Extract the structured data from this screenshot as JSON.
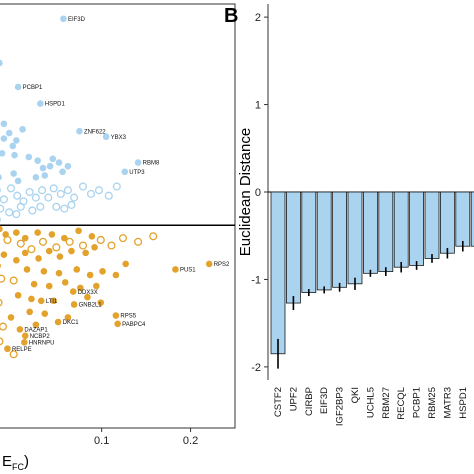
{
  "chart_data": [
    {
      "type": "scatter",
      "panel_label": "",
      "xlabel": "E_FC)",
      "xlabel_main": "E",
      "xlabel_sub": "FC",
      "xlabel_suffix": ")",
      "ylabel": "",
      "xlim": [
        -0.02,
        0.25
      ],
      "ylim": [
        -0.5,
        1.8
      ],
      "x_ticks": [
        0.1,
        0.2
      ],
      "x_tick_labels": [
        "0.1",
        "0.2"
      ],
      "hline": 0.6,
      "grid": false,
      "colors": {
        "blue": "#a9d3ef",
        "orange": "#e3a22c"
      },
      "labeled_points": [
        {
          "label": "EIF3D",
          "x": 0.057,
          "y": 1.72,
          "group": "blue"
        },
        {
          "label": "PCBP1",
          "x": 0.006,
          "y": 1.35,
          "group": "blue"
        },
        {
          "label": "HSPD1",
          "x": 0.031,
          "y": 1.26,
          "group": "blue"
        },
        {
          "label": "ZNF622",
          "x": 0.075,
          "y": 1.11,
          "group": "blue"
        },
        {
          "label": "YBX3",
          "x": 0.105,
          "y": 1.08,
          "group": "blue"
        },
        {
          "label": "RBM8",
          "x": 0.141,
          "y": 0.94,
          "group": "blue"
        },
        {
          "label": "UTP3",
          "x": 0.126,
          "y": 0.89,
          "group": "blue"
        },
        {
          "label": "RPS2",
          "x": 0.221,
          "y": 0.39,
          "group": "orange"
        },
        {
          "label": "PUS1",
          "x": 0.183,
          "y": 0.36,
          "group": "orange"
        },
        {
          "label": "DDX3X",
          "x": 0.068,
          "y": 0.24,
          "group": "orange"
        },
        {
          "label": "LTI1",
          "x": 0.032,
          "y": 0.19,
          "group": "orange"
        },
        {
          "label": "GNB2L1",
          "x": 0.069,
          "y": 0.17,
          "group": "orange"
        },
        {
          "label": "RPS5",
          "x": 0.116,
          "y": 0.11,
          "group": "orange"
        },
        {
          "label": "PABPC4",
          "x": 0.118,
          "y": 0.065,
          "group": "orange"
        },
        {
          "label": "DKC1",
          "x": 0.051,
          "y": 0.075,
          "group": "orange"
        },
        {
          "label": "DAZAP1",
          "x": 0.008,
          "y": 0.035,
          "group": "orange"
        },
        {
          "label": "NCBP2",
          "x": 0.014,
          "y": 0.0,
          "group": "orange"
        },
        {
          "label": "HNRNPU",
          "x": 0.013,
          "y": -0.035,
          "group": "orange"
        },
        {
          "label": "RELPE",
          "x": -0.006,
          "y": -0.07,
          "group": "orange"
        }
      ],
      "filled_points": [
        {
          "x": -0.015,
          "y": 1.48,
          "group": "blue"
        },
        {
          "x": -0.01,
          "y": 1.15,
          "group": "blue"
        },
        {
          "x": -0.01,
          "y": 1.07,
          "group": "blue"
        },
        {
          "x": -0.004,
          "y": 1.1,
          "group": "blue"
        },
        {
          "x": 0.0,
          "y": 1.03,
          "group": "blue"
        },
        {
          "x": 0.004,
          "y": 1.06,
          "group": "blue"
        },
        {
          "x": 0.011,
          "y": 1.12,
          "group": "blue"
        },
        {
          "x": 0.002,
          "y": 0.98,
          "group": "blue"
        },
        {
          "x": -0.012,
          "y": 0.99,
          "group": "blue"
        },
        {
          "x": -0.018,
          "y": 1.04,
          "group": "blue"
        },
        {
          "x": 0.018,
          "y": 0.97,
          "group": "blue"
        },
        {
          "x": 0.028,
          "y": 0.95,
          "group": "blue"
        },
        {
          "x": 0.034,
          "y": 0.91,
          "group": "blue"
        },
        {
          "x": 0.042,
          "y": 0.92,
          "group": "blue"
        },
        {
          "x": 0.045,
          "y": 0.96,
          "group": "blue"
        },
        {
          "x": 0.052,
          "y": 0.94,
          "group": "blue"
        },
        {
          "x": 0.056,
          "y": 0.89,
          "group": "blue"
        },
        {
          "x": 0.062,
          "y": 0.92,
          "group": "blue"
        },
        {
          "x": 0.036,
          "y": 0.87,
          "group": "blue"
        },
        {
          "x": 0.026,
          "y": 0.86,
          "group": "blue"
        },
        {
          "x": 0.006,
          "y": 0.84,
          "group": "blue"
        },
        {
          "x": 0.001,
          "y": 0.88,
          "group": "blue"
        },
        {
          "x": -0.016,
          "y": 0.86,
          "group": "blue"
        },
        {
          "x": -0.015,
          "y": 0.58,
          "group": "orange"
        },
        {
          "x": -0.008,
          "y": 0.55,
          "group": "orange"
        },
        {
          "x": 0.004,
          "y": 0.56,
          "group": "orange"
        },
        {
          "x": 0.014,
          "y": 0.53,
          "group": "orange"
        },
        {
          "x": 0.028,
          "y": 0.56,
          "group": "orange"
        },
        {
          "x": 0.044,
          "y": 0.55,
          "group": "orange"
        },
        {
          "x": 0.058,
          "y": 0.53,
          "group": "orange"
        },
        {
          "x": 0.074,
          "y": 0.57,
          "group": "orange"
        },
        {
          "x": 0.089,
          "y": 0.54,
          "group": "orange"
        },
        {
          "x": 0.092,
          "y": 0.48,
          "group": "orange"
        },
        {
          "x": 0.082,
          "y": 0.45,
          "group": "orange"
        },
        {
          "x": 0.066,
          "y": 0.46,
          "group": "orange"
        },
        {
          "x": 0.053,
          "y": 0.43,
          "group": "orange"
        },
        {
          "x": 0.041,
          "y": 0.46,
          "group": "orange"
        },
        {
          "x": 0.029,
          "y": 0.42,
          "group": "orange"
        },
        {
          "x": 0.014,
          "y": 0.45,
          "group": "orange"
        },
        {
          "x": 0.004,
          "y": 0.41,
          "group": "orange"
        },
        {
          "x": -0.01,
          "y": 0.44,
          "group": "orange"
        },
        {
          "x": -0.017,
          "y": 0.38,
          "group": "orange"
        },
        {
          "x": 0.016,
          "y": 0.36,
          "group": "orange"
        },
        {
          "x": 0.035,
          "y": 0.35,
          "group": "orange"
        },
        {
          "x": 0.052,
          "y": 0.34,
          "group": "orange"
        },
        {
          "x": 0.072,
          "y": 0.36,
          "group": "orange"
        },
        {
          "x": 0.087,
          "y": 0.33,
          "group": "orange"
        },
        {
          "x": 0.101,
          "y": 0.35,
          "group": "orange"
        },
        {
          "x": 0.116,
          "y": 0.33,
          "group": "orange"
        },
        {
          "x": 0.127,
          "y": 0.39,
          "group": "orange"
        },
        {
          "x": 0.024,
          "y": 0.28,
          "group": "orange"
        },
        {
          "x": 0.041,
          "y": 0.27,
          "group": "orange"
        },
        {
          "x": 0.059,
          "y": 0.29,
          "group": "orange"
        },
        {
          "x": 0.076,
          "y": 0.26,
          "group": "orange"
        },
        {
          "x": 0.094,
          "y": 0.27,
          "group": "orange"
        },
        {
          "x": 0.006,
          "y": 0.22,
          "group": "orange"
        },
        {
          "x": 0.021,
          "y": 0.2,
          "group": "orange"
        },
        {
          "x": 0.046,
          "y": 0.19,
          "group": "orange"
        },
        {
          "x": 0.084,
          "y": 0.21,
          "group": "orange"
        },
        {
          "x": 0.099,
          "y": 0.18,
          "group": "orange"
        },
        {
          "x": 0.019,
          "y": 0.13,
          "group": "orange"
        },
        {
          "x": 0.036,
          "y": 0.12,
          "group": "orange"
        },
        {
          "x": 0.062,
          "y": 0.1,
          "group": "orange"
        },
        {
          "x": 0.026,
          "y": 0.06,
          "group": "orange"
        },
        {
          "x": -0.002,
          "y": 0.1,
          "group": "orange"
        }
      ],
      "open_points": [
        {
          "x": -0.018,
          "y": 0.79,
          "group": "blue"
        },
        {
          "x": -0.01,
          "y": 0.74,
          "group": "blue"
        },
        {
          "x": -0.002,
          "y": 0.8,
          "group": "blue"
        },
        {
          "x": 0.005,
          "y": 0.76,
          "group": "blue"
        },
        {
          "x": 0.012,
          "y": 0.73,
          "group": "blue"
        },
        {
          "x": 0.019,
          "y": 0.78,
          "group": "blue"
        },
        {
          "x": 0.026,
          "y": 0.75,
          "group": "blue"
        },
        {
          "x": 0.033,
          "y": 0.79,
          "group": "blue"
        },
        {
          "x": 0.04,
          "y": 0.75,
          "group": "blue"
        },
        {
          "x": 0.046,
          "y": 0.8,
          "group": "blue"
        },
        {
          "x": 0.054,
          "y": 0.77,
          "group": "blue"
        },
        {
          "x": 0.062,
          "y": 0.79,
          "group": "blue"
        },
        {
          "x": 0.069,
          "y": 0.75,
          "group": "blue"
        },
        {
          "x": 0.079,
          "y": 0.81,
          "group": "blue"
        },
        {
          "x": 0.088,
          "y": 0.77,
          "group": "blue"
        },
        {
          "x": 0.097,
          "y": 0.79,
          "group": "blue"
        },
        {
          "x": 0.108,
          "y": 0.76,
          "group": "blue"
        },
        {
          "x": 0.117,
          "y": 0.81,
          "group": "blue"
        },
        {
          "x": -0.014,
          "y": 0.69,
          "group": "blue"
        },
        {
          "x": -0.004,
          "y": 0.67,
          "group": "blue"
        },
        {
          "x": 0.009,
          "y": 0.7,
          "group": "blue"
        },
        {
          "x": 0.022,
          "y": 0.68,
          "group": "blue"
        },
        {
          "x": 0.031,
          "y": 0.7,
          "group": "blue"
        },
        {
          "x": 0.049,
          "y": 0.7,
          "group": "blue"
        },
        {
          "x": 0.058,
          "y": 0.69,
          "group": "blue"
        },
        {
          "x": 0.066,
          "y": 0.71,
          "group": "blue"
        },
        {
          "x": 0.004,
          "y": 0.66,
          "group": "blue"
        },
        {
          "x": -0.018,
          "y": 0.63,
          "group": "blue"
        },
        {
          "x": -0.006,
          "y": 0.52,
          "group": "orange"
        },
        {
          "x": 0.009,
          "y": 0.5,
          "group": "orange"
        },
        {
          "x": 0.021,
          "y": 0.47,
          "group": "orange"
        },
        {
          "x": 0.034,
          "y": 0.51,
          "group": "orange"
        },
        {
          "x": 0.049,
          "y": 0.48,
          "group": "orange"
        },
        {
          "x": 0.064,
          "y": 0.51,
          "group": "orange"
        },
        {
          "x": 0.079,
          "y": 0.49,
          "group": "orange"
        },
        {
          "x": 0.099,
          "y": 0.52,
          "group": "orange"
        },
        {
          "x": 0.111,
          "y": 0.49,
          "group": "orange"
        },
        {
          "x": 0.124,
          "y": 0.53,
          "group": "orange"
        },
        {
          "x": 0.141,
          "y": 0.51,
          "group": "orange"
        },
        {
          "x": 0.158,
          "y": 0.54,
          "group": "orange"
        },
        {
          "x": -0.013,
          "y": 0.31,
          "group": "orange"
        },
        {
          "x": 0.001,
          "y": 0.3,
          "group": "orange"
        },
        {
          "x": -0.016,
          "y": 0.18,
          "group": "orange"
        },
        {
          "x": -0.011,
          "y": 0.05,
          "group": "orange"
        },
        {
          "x": 0.001,
          "y": -0.1,
          "group": "orange"
        },
        {
          "x": -0.015,
          "y": -0.03,
          "group": "orange"
        }
      ]
    },
    {
      "type": "bar",
      "panel_label": "B",
      "xlabel": "",
      "ylabel": "Euclidean Distance",
      "ylim": [
        -2.15,
        2.15
      ],
      "y_ticks": [
        -2,
        -1,
        0,
        1,
        2
      ],
      "y_tick_labels": [
        "-2",
        "-1",
        "0",
        "1",
        "2"
      ],
      "grid": false,
      "colors": {
        "bar": "#a9d3ef",
        "bar_outline": "#1a1a1a",
        "error": "#000000"
      },
      "categories": [
        "CSTF2",
        "UPF2",
        "CIRBP",
        "EIF3D",
        "IGF2BP3",
        "QKI",
        "UCHL5",
        "RBM27",
        "RECQL",
        "PCBP1",
        "RBM25",
        "MATR3",
        "HSPD1",
        ""
      ],
      "values": [
        -1.85,
        -1.27,
        -1.15,
        -1.12,
        -1.09,
        -1.05,
        -0.93,
        -0.91,
        -0.86,
        -0.84,
        -0.76,
        -0.7,
        -0.62,
        -0.62
      ],
      "errors": [
        0.17,
        0.08,
        0.04,
        0.04,
        0.05,
        0.07,
        0.04,
        0.05,
        0.06,
        0.05,
        0.05,
        0.06,
        0.06,
        0.0
      ]
    }
  ]
}
